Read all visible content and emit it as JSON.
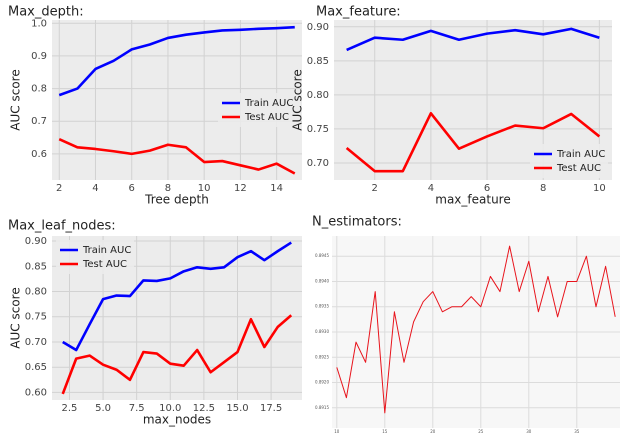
{
  "chart_data": [
    {
      "type": "line",
      "title": "Max_depth:",
      "xlabel": "Tree depth",
      "ylabel": "AUC score",
      "x": [
        2,
        3,
        4,
        5,
        6,
        7,
        8,
        9,
        10,
        11,
        12,
        13,
        14,
        15
      ],
      "series": [
        {
          "name": "Train AUC",
          "color": "#0000ff",
          "values": [
            0.78,
            0.8,
            0.86,
            0.885,
            0.92,
            0.935,
            0.955,
            0.965,
            0.972,
            0.978,
            0.98,
            0.983,
            0.985,
            0.988
          ]
        },
        {
          "name": "Test AUC",
          "color": "#ff0000",
          "values": [
            0.645,
            0.62,
            0.615,
            0.608,
            0.6,
            0.61,
            0.628,
            0.62,
            0.575,
            0.578,
            0.565,
            0.552,
            0.57,
            0.54
          ]
        }
      ],
      "xlim": [
        1.6,
        15.4
      ],
      "xticks": [
        2,
        4,
        6,
        8,
        10,
        12,
        14
      ],
      "ylim": [
        0.52,
        1.01
      ],
      "yticks": [
        0.6,
        0.7,
        0.8,
        0.9,
        {
          "value": 1,
          "label": "1.0"
        }
      ],
      "grid": true,
      "legend": "center right"
    },
    {
      "type": "line",
      "title": "Max_feature:",
      "xlabel": "max_feature",
      "ylabel": "AUC score",
      "x": [
        1,
        2,
        3,
        4,
        5,
        6,
        7,
        8,
        9,
        10
      ],
      "series": [
        {
          "name": "Train AUC",
          "color": "#0000ff",
          "values": [
            0.866,
            0.884,
            0.881,
            0.894,
            0.881,
            0.89,
            0.895,
            0.889,
            0.897,
            0.884
          ]
        },
        {
          "name": "Test AUC",
          "color": "#ff0000",
          "values": [
            0.722,
            0.688,
            0.688,
            0.773,
            0.721,
            0.739,
            0.755,
            0.751,
            0.772,
            0.739
          ]
        }
      ],
      "xlim": [
        0.55,
        10.45
      ],
      "xticks": [
        2,
        4,
        6,
        8,
        10
      ],
      "ylim": [
        0.675,
        0.91
      ],
      "yticks": [
        {
          "value": 0.7,
          "label": "0.70"
        },
        0.75,
        {
          "value": 0.8,
          "label": "0.80"
        },
        0.85,
        {
          "value": 0.9,
          "label": "0.90"
        }
      ],
      "grid": true,
      "legend": "lower right"
    },
    {
      "type": "line",
      "title": "Max_leaf_nodes:",
      "xlabel": "max_nodes",
      "ylabel": "AUC score",
      "x": [
        2,
        3,
        4,
        5,
        6,
        7,
        8,
        9,
        10,
        11,
        12,
        13,
        14,
        15,
        16,
        17,
        18,
        19
      ],
      "series": [
        {
          "name": "Train AUC",
          "color": "#0000ff",
          "values": [
            0.7,
            0.684,
            0.735,
            0.785,
            0.792,
            0.791,
            0.822,
            0.821,
            0.826,
            0.84,
            0.848,
            0.845,
            0.848,
            0.868,
            0.88,
            0.862,
            0.88,
            0.897
          ]
        },
        {
          "name": "Test AUC",
          "color": "#ff0000",
          "values": [
            0.597,
            0.667,
            0.673,
            0.655,
            0.645,
            0.625,
            0.68,
            0.677,
            0.657,
            0.653,
            0.684,
            0.64,
            0.66,
            0.68,
            0.745,
            0.69,
            0.73,
            0.753
          ]
        }
      ],
      "xlim": [
        1.2,
        19.8
      ],
      "xticks": [
        2.5,
        {
          "value": 5,
          "label": "5.0"
        },
        7.5,
        {
          "value": 10,
          "label": "10.0"
        },
        12.5,
        {
          "value": 15,
          "label": "15.0"
        },
        17.5
      ],
      "ylim": [
        0.585,
        0.91
      ],
      "yticks": [
        {
          "value": 0.6,
          "label": "0.60"
        },
        0.65,
        {
          "value": 0.7,
          "label": "0.70"
        },
        0.75,
        {
          "value": 0.8,
          "label": "0.80"
        },
        0.85,
        {
          "value": 0.9,
          "label": "0.90"
        }
      ],
      "grid": true,
      "legend": "upper left"
    },
    {
      "type": "line",
      "title": "N_estimators:",
      "x": [
        10,
        11,
        12,
        13,
        14,
        15,
        16,
        17,
        18,
        19,
        20,
        21,
        22,
        23,
        24,
        25,
        26,
        27,
        28,
        29,
        30,
        31,
        32,
        33,
        34,
        35,
        36,
        37,
        38,
        39
      ],
      "series": [
        {
          "color": "#e8141c",
          "values": [
            0.8923,
            0.8917,
            0.8928,
            0.8924,
            0.8938,
            0.8914,
            0.8934,
            0.8924,
            0.8932,
            0.8936,
            0.8938,
            0.8934,
            0.8935,
            0.8935,
            0.8937,
            0.8935,
            0.8941,
            0.8938,
            0.8947,
            0.8938,
            0.8944,
            0.8934,
            0.8941,
            0.8933,
            0.894,
            0.894,
            0.8945,
            0.8935,
            0.8943,
            0.8933
          ]
        }
      ],
      "xlim": [
        9.5,
        39.5
      ],
      "xticks": [
        10,
        15,
        20,
        25,
        30,
        35
      ],
      "ylim": [
        0.8911,
        0.8949
      ],
      "yticks": [
        0.8915,
        {
          "value": 0.892,
          "label": "0.8920"
        },
        0.8925,
        {
          "value": 0.893,
          "label": "0.8930"
        },
        0.8935,
        {
          "value": 0.894,
          "label": "0.8940"
        },
        0.8945
      ],
      "grid": true
    }
  ]
}
